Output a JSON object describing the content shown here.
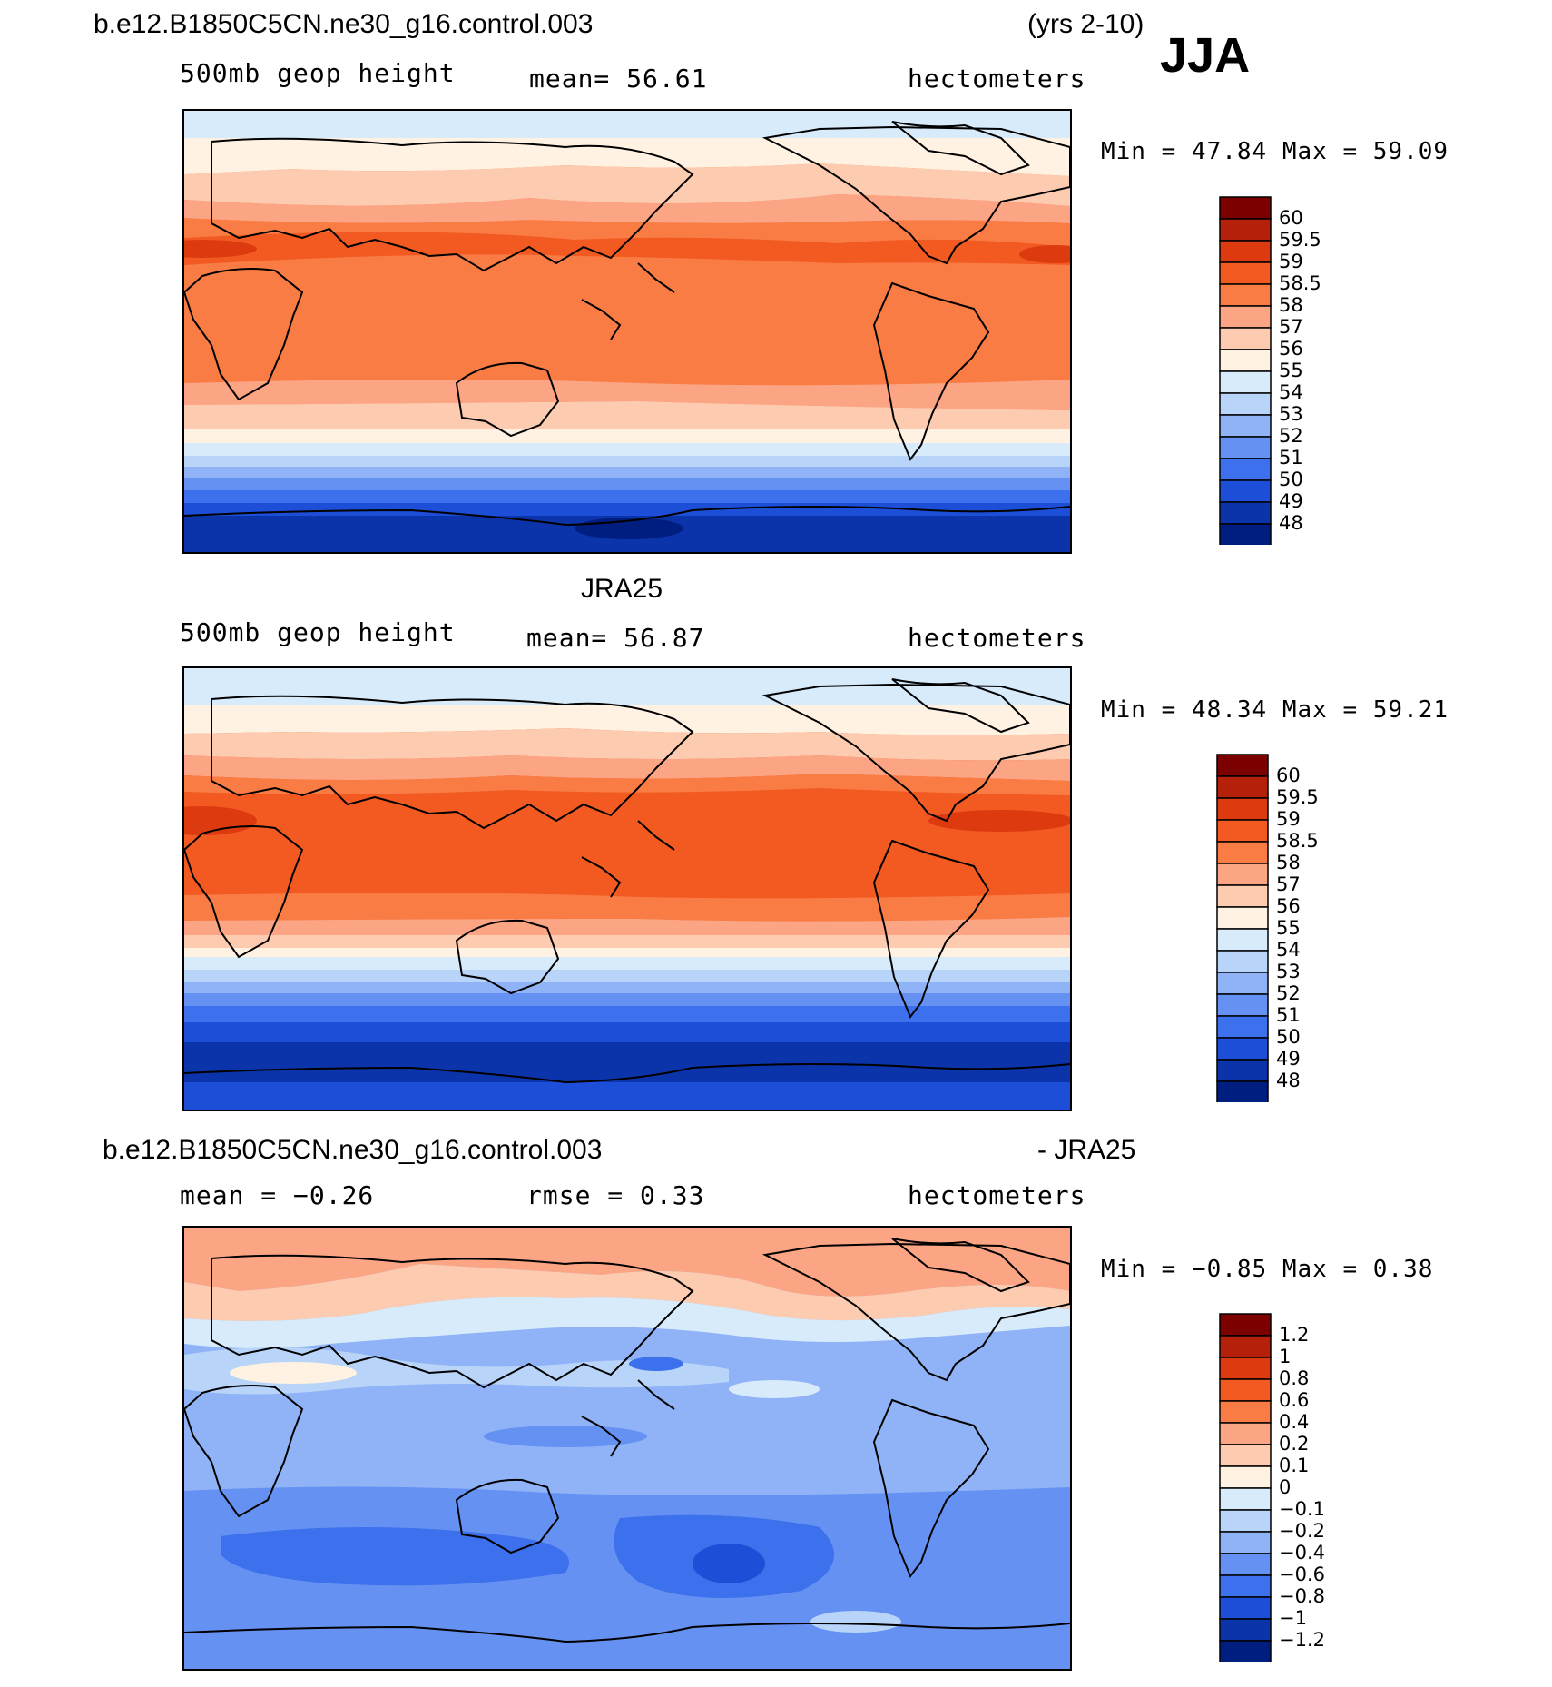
{
  "title": {
    "case": "b.e12.B1850C5CN.ne30_g16.control.003",
    "years": "(yrs 2-10)",
    "season": "JJA"
  },
  "panels": [
    {
      "id": "model",
      "heading": "",
      "variable": "500mb  geop  height",
      "mean": "mean=   56.61",
      "units": "hectometers",
      "minmax": "Min  =    47.84  Max  =    59.09",
      "colorbar": {
        "labels": [
          "60",
          "59.5",
          "59",
          "58.5",
          "58",
          "57",
          "56",
          "55",
          "54",
          "53",
          "52",
          "51",
          "50",
          "49",
          "48"
        ],
        "colors": [
          "#7d0000",
          "#b5200a",
          "#dd3a10",
          "#f25a22",
          "#f97c45",
          "#fca584",
          "#fdcbb0",
          "#fff2e3",
          "#d8ebfb",
          "#b8d4f9",
          "#8fb3f6",
          "#6592f2",
          "#3d70ec",
          "#1d4ed8",
          "#0b34aa",
          "#001d80"
        ]
      }
    },
    {
      "id": "obs",
      "heading": "JRA25",
      "variable": "500mb  geop  height",
      "mean": "mean=   56.87",
      "units": "hectometers",
      "minmax": "Min  =    48.34  Max  =    59.21",
      "colorbar": {
        "labels": [
          "60",
          "59.5",
          "59",
          "58.5",
          "58",
          "57",
          "56",
          "55",
          "54",
          "53",
          "52",
          "51",
          "50",
          "49",
          "48"
        ],
        "colors": [
          "#7d0000",
          "#b5200a",
          "#dd3a10",
          "#f25a22",
          "#f97c45",
          "#fca584",
          "#fdcbb0",
          "#fff2e3",
          "#d8ebfb",
          "#b8d4f9",
          "#8fb3f6",
          "#6592f2",
          "#3d70ec",
          "#1d4ed8",
          "#0b34aa",
          "#001d80"
        ]
      }
    },
    {
      "id": "diff",
      "heading": "b.e12.B1850C5CN.ne30_g16.control.003",
      "heading_right": "- JRA25",
      "variable": "mean  =   −0.26",
      "mean": "rmse  =    0.33",
      "units": "hectometers",
      "minmax": "Min  =   −0.85  Max  =     0.38",
      "colorbar": {
        "labels": [
          "1.2",
          "1",
          "0.8",
          "0.6",
          "0.4",
          "0.2",
          "0.1",
          "0",
          "−0.1",
          "−0.2",
          "−0.4",
          "−0.6",
          "−0.8",
          "−1",
          "−1.2"
        ],
        "colors": [
          "#7d0000",
          "#b5200a",
          "#dd3a10",
          "#f25a22",
          "#f97c45",
          "#fca584",
          "#fdcbb0",
          "#fff2e3",
          "#d8ebfb",
          "#b8d4f9",
          "#8fb3f6",
          "#6592f2",
          "#3d70ec",
          "#1d4ed8",
          "#0b34aa",
          "#001d80"
        ]
      }
    }
  ],
  "palette": {
    "land_outline": "#000000",
    "pos_strong": "#f25a22",
    "pos_mid": "#f97c45",
    "pos_light": "#fca584",
    "pos_pale": "#fdcbb0",
    "neutral": "#fff2e3",
    "neg_pale": "#d8ebfb",
    "neg_light": "#b8d4f9",
    "neg_mid": "#8fb3f6",
    "neg_med": "#6592f2",
    "neg_strong": "#3d70ec",
    "neg_deep": "#1d4ed8",
    "neg_darker": "#0b34aa",
    "neg_darkest": "#001d80"
  }
}
